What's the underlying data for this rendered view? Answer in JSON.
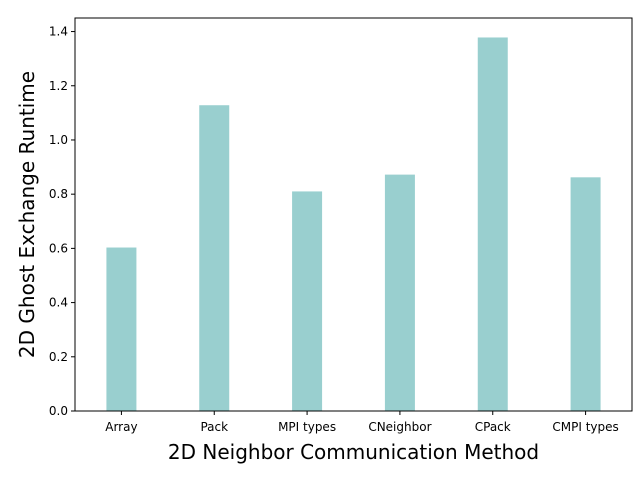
{
  "chart_data": {
    "type": "bar",
    "categories": [
      "Array",
      "Pack",
      "MPI types",
      "CNeighbor",
      "CPack",
      "CMPI types"
    ],
    "values": [
      0.605,
      1.13,
      0.812,
      0.874,
      1.38,
      0.864
    ],
    "title": "",
    "xlabel": "2D Neighbor Communication Method",
    "ylabel": "2D Ghost Exchange Runtime",
    "ylim": [
      0,
      1.45
    ],
    "yticks": [
      "0.0",
      "0.2",
      "0.4",
      "0.6",
      "0.8",
      "1.0",
      "1.2",
      "1.4"
    ],
    "bar_color": "#99cfcf",
    "bar_edge_color": "#ffffff",
    "grid": false,
    "legend": "none"
  }
}
